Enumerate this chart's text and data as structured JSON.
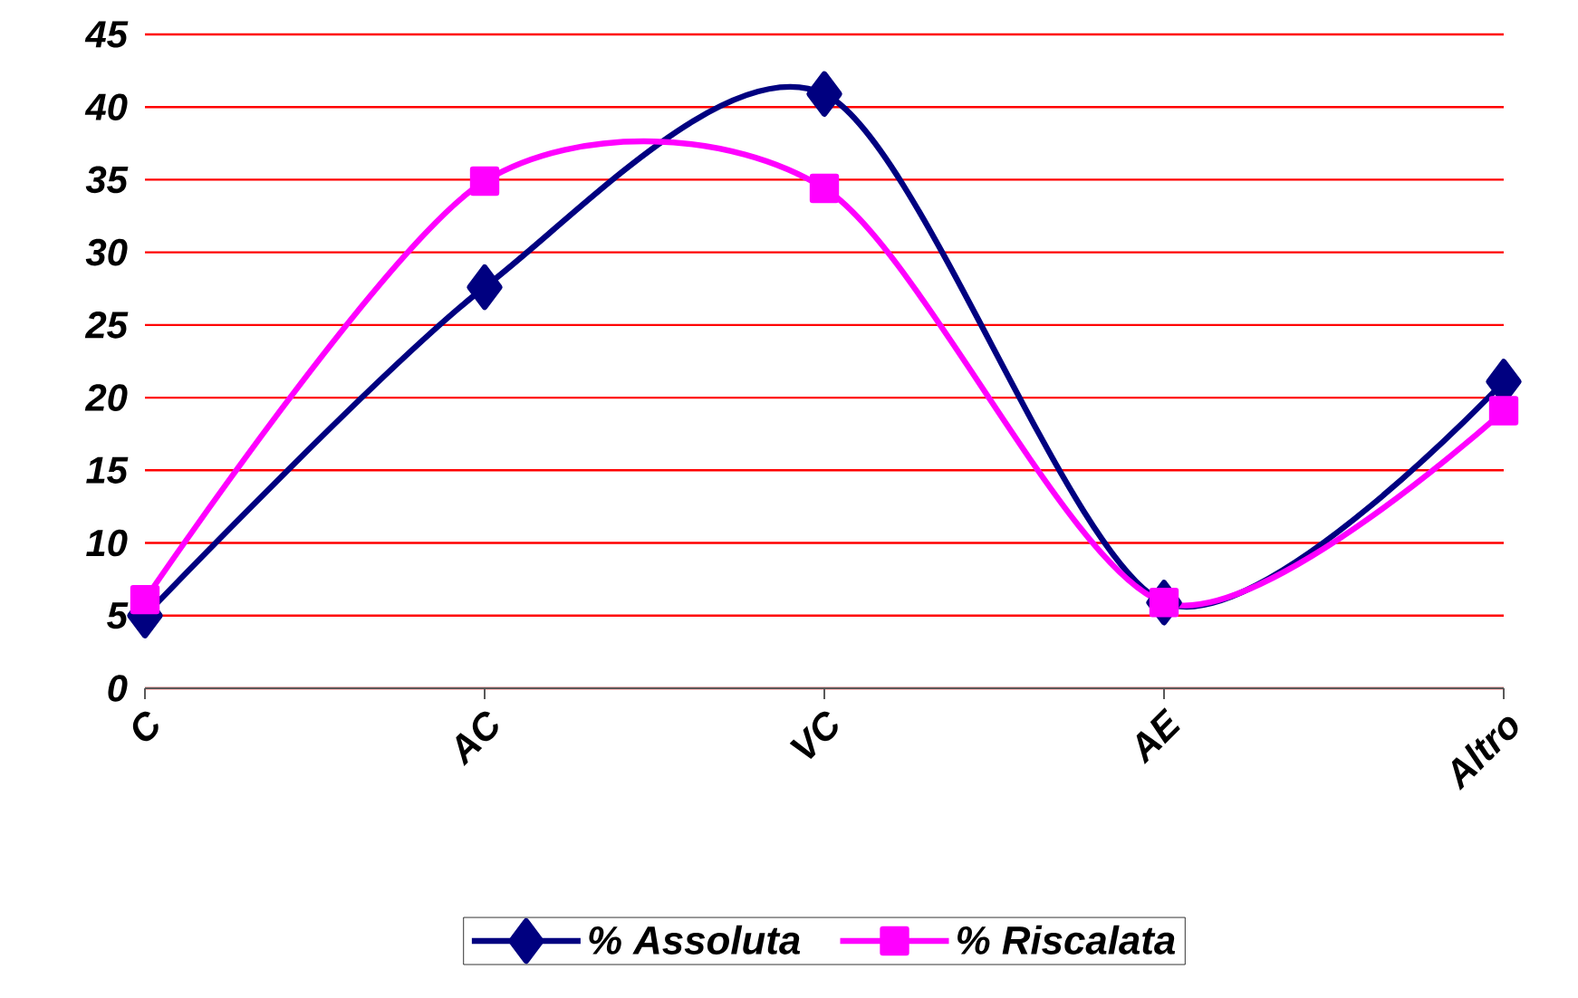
{
  "chart_data": {
    "type": "line",
    "categories": [
      "C",
      "AC",
      "VC",
      "AE",
      "Altro"
    ],
    "series": [
      {
        "name": "% Assoluta",
        "color": "#000080",
        "marker": "diamond",
        "values": [
          5.0,
          27.6,
          40.9,
          5.9,
          21.1
        ]
      },
      {
        "name": "% Riscalata",
        "color": "#ff00ff",
        "marker": "square",
        "values": [
          6.1,
          34.9,
          34.4,
          5.9,
          19.1
        ]
      }
    ],
    "ylim": [
      0,
      45
    ],
    "yticks": [
      0,
      5,
      10,
      15,
      20,
      25,
      30,
      35,
      40,
      45
    ],
    "grid": "y",
    "legend": "bottom",
    "line_style": "solid"
  }
}
